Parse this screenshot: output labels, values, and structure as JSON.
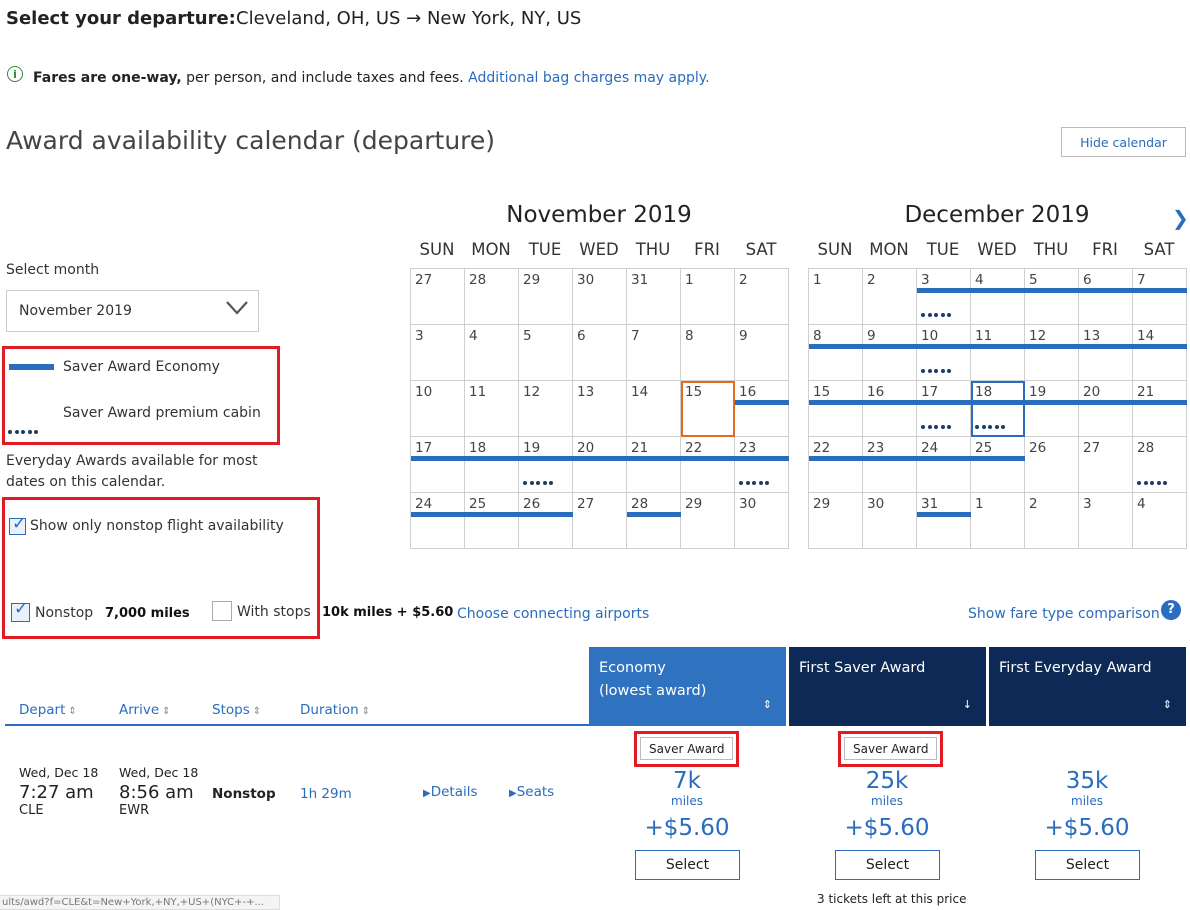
{
  "header": {
    "title": "Select your departure:",
    "route": "Cleveland, OH, US → New York, NY, US",
    "fares_bold": "Fares are one-way,",
    "fares_rest": " per person, and include taxes and fees.",
    "bag_link": "Additional bag charges may apply."
  },
  "calendar": {
    "heading": "Award availability calendar (departure)",
    "hide_button": "Hide calendar",
    "select_month_label": "Select month",
    "selected_month": "November 2019",
    "legend_economy": "Saver Award Economy",
    "legend_premium": "Saver Award premium cabin",
    "everyday_note": "Everyday Awards available for most dates on this calendar.",
    "weekday_labels": [
      "SUN",
      "MON",
      "TUE",
      "WED",
      "THU",
      "FRI",
      "SAT"
    ],
    "months": [
      {
        "title": "November 2019",
        "days": [
          {
            "n": "27"
          },
          {
            "n": "28"
          },
          {
            "n": "29"
          },
          {
            "n": "30"
          },
          {
            "n": "31"
          },
          {
            "n": "1"
          },
          {
            "n": "2"
          },
          {
            "n": "3"
          },
          {
            "n": "4"
          },
          {
            "n": "5"
          },
          {
            "n": "6"
          },
          {
            "n": "7"
          },
          {
            "n": "8"
          },
          {
            "n": "9"
          },
          {
            "n": "10"
          },
          {
            "n": "11"
          },
          {
            "n": "12"
          },
          {
            "n": "13"
          },
          {
            "n": "14"
          },
          {
            "n": "15",
            "sel": "orange"
          },
          {
            "n": "16",
            "eco": true
          },
          {
            "n": "17",
            "eco": true
          },
          {
            "n": "18",
            "eco": true
          },
          {
            "n": "19",
            "eco": true,
            "prem": true
          },
          {
            "n": "20",
            "eco": true
          },
          {
            "n": "21",
            "eco": true
          },
          {
            "n": "22",
            "eco": true
          },
          {
            "n": "23",
            "eco": true,
            "prem": true
          },
          {
            "n": "24",
            "eco": true
          },
          {
            "n": "25",
            "eco": true
          },
          {
            "n": "26",
            "eco": true
          },
          {
            "n": "27"
          },
          {
            "n": "28",
            "eco": true
          },
          {
            "n": "29"
          },
          {
            "n": "30"
          }
        ]
      },
      {
        "title": "December 2019",
        "days": [
          {
            "n": "1"
          },
          {
            "n": "2"
          },
          {
            "n": "3",
            "eco": true,
            "prem": true
          },
          {
            "n": "4",
            "eco": true
          },
          {
            "n": "5",
            "eco": true
          },
          {
            "n": "6",
            "eco": true
          },
          {
            "n": "7",
            "eco": true
          },
          {
            "n": "8",
            "eco": true
          },
          {
            "n": "9",
            "eco": true
          },
          {
            "n": "10",
            "eco": true,
            "prem": true
          },
          {
            "n": "11",
            "eco": true
          },
          {
            "n": "12",
            "eco": true
          },
          {
            "n": "13",
            "eco": true
          },
          {
            "n": "14",
            "eco": true
          },
          {
            "n": "15",
            "eco": true
          },
          {
            "n": "16",
            "eco": true
          },
          {
            "n": "17",
            "eco": true,
            "prem": true
          },
          {
            "n": "18",
            "eco": true,
            "prem": true,
            "sel": "blue"
          },
          {
            "n": "19",
            "eco": true
          },
          {
            "n": "20",
            "eco": true
          },
          {
            "n": "21",
            "eco": true
          },
          {
            "n": "22",
            "eco": true
          },
          {
            "n": "23",
            "eco": true
          },
          {
            "n": "24",
            "eco": true
          },
          {
            "n": "25",
            "eco": true
          },
          {
            "n": "26"
          },
          {
            "n": "27"
          },
          {
            "n": "28",
            "prem": true
          },
          {
            "n": "29"
          },
          {
            "n": "30"
          },
          {
            "n": "31",
            "eco": true
          },
          {
            "n": "1"
          },
          {
            "n": "2"
          },
          {
            "n": "3"
          },
          {
            "n": "4"
          }
        ]
      }
    ]
  },
  "filters": {
    "nonstop_only_label": "Show only nonstop flight availability",
    "nonstop_label": "Nonstop",
    "nonstop_miles": "7,000 miles",
    "stops_label": "With stops",
    "stops_miles": "10k miles + $5.60",
    "connecting_link": "Choose connecting airports",
    "compare_link": "Show fare type comparison",
    "help_glyph": "?"
  },
  "table": {
    "headers": {
      "depart": "Depart",
      "arrive": "Arrive",
      "stops": "Stops",
      "duration": "Duration"
    },
    "sort_glyph": "⇕",
    "fare_columns": [
      {
        "line1": "Economy",
        "line2": "(lowest award)",
        "sort": "⇕",
        "color": "#2f73c0"
      },
      {
        "line1": "First Saver Award",
        "line2": "",
        "sort": "↓",
        "color": "#0c2a55"
      },
      {
        "line1": "First Everyday Award",
        "line2": "",
        "sort": "⇕",
        "color": "#0c2a55"
      }
    ],
    "flight": {
      "depart_date": "Wed, Dec 18",
      "depart_time": "7:27 am",
      "depart_airport": "CLE",
      "arrive_date": "Wed, Dec 18",
      "arrive_time": "8:56 am",
      "arrive_airport": "EWR",
      "stops": "Nonstop",
      "duration": "1h 29m",
      "details_link": "Details",
      "seats_link": "Seats",
      "fares": [
        {
          "tag": "Saver Award",
          "miles": "7k",
          "miles_label": "miles",
          "tax": "+$5.60",
          "select": "Select"
        },
        {
          "tag": "Saver Award",
          "miles": "25k",
          "miles_label": "miles",
          "tax": "+$5.60",
          "select": "Select"
        },
        {
          "tag": "",
          "miles": "35k",
          "miles_label": "miles",
          "tax": "+$5.60",
          "select": "Select"
        }
      ],
      "tickets_left": "3 tickets left at this price"
    }
  },
  "status_url": "ults/awd?f=CLE&t=New+York,+NY,+US+(NYC+-+..."
}
